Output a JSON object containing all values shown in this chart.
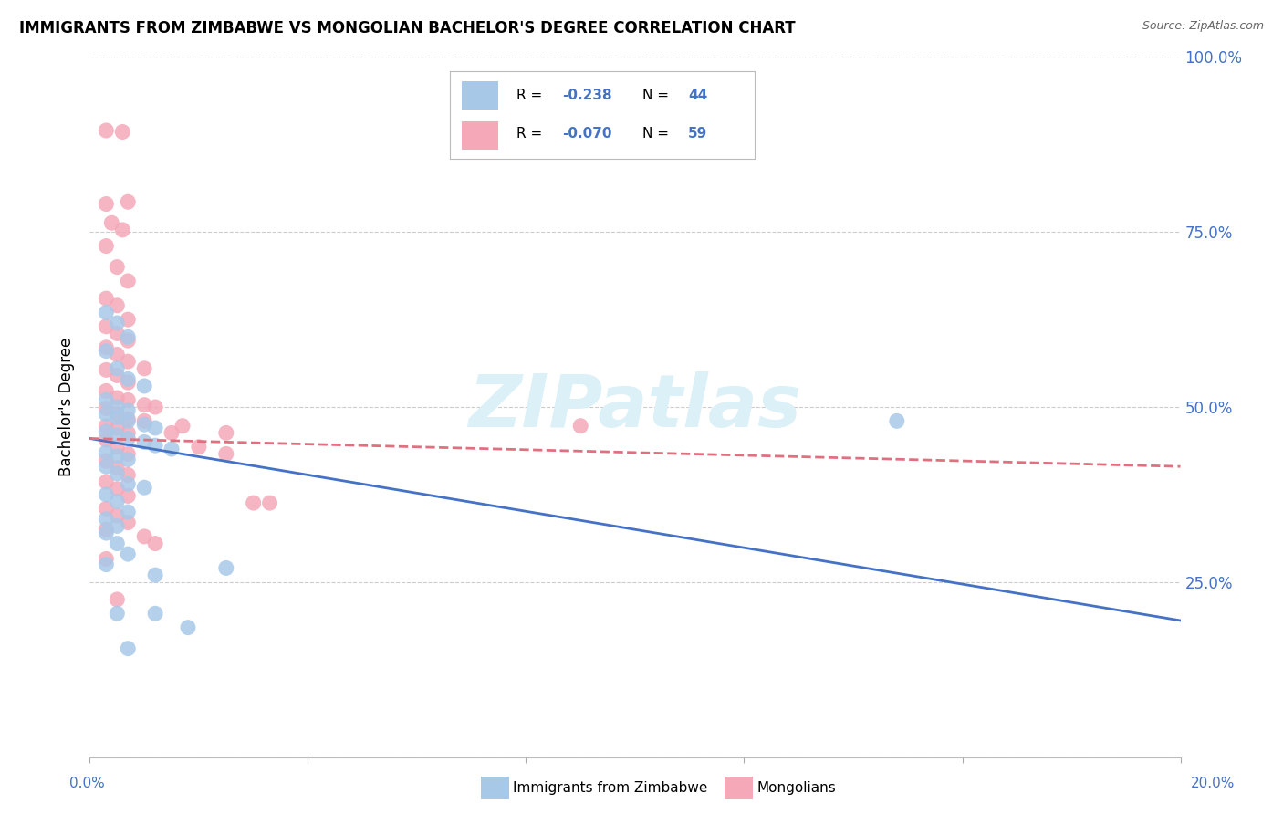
{
  "title": "IMMIGRANTS FROM ZIMBABWE VS MONGOLIAN BACHELOR'S DEGREE CORRELATION CHART",
  "source": "Source: ZipAtlas.com",
  "ylabel": "Bachelor's Degree",
  "ylim": [
    0.0,
    1.0
  ],
  "xlim": [
    0.0,
    0.2
  ],
  "ytick_vals": [
    0.0,
    0.25,
    0.5,
    0.75,
    1.0
  ],
  "ytick_labels_right": [
    "",
    "25.0%",
    "50.0%",
    "75.0%",
    "100.0%"
  ],
  "color_blue": "#A8C8E8",
  "color_pink": "#F4A8B8",
  "color_blue_line": "#4472C4",
  "color_pink_line": "#E07080",
  "blue_line": [
    [
      0.0,
      0.455
    ],
    [
      0.2,
      0.195
    ]
  ],
  "pink_line": [
    [
      0.0,
      0.455
    ],
    [
      0.2,
      0.415
    ]
  ],
  "blue_scatter": [
    [
      0.003,
      0.635
    ],
    [
      0.005,
      0.62
    ],
    [
      0.007,
      0.6
    ],
    [
      0.003,
      0.58
    ],
    [
      0.005,
      0.555
    ],
    [
      0.007,
      0.54
    ],
    [
      0.01,
      0.53
    ],
    [
      0.003,
      0.51
    ],
    [
      0.005,
      0.5
    ],
    [
      0.007,
      0.495
    ],
    [
      0.003,
      0.49
    ],
    [
      0.005,
      0.485
    ],
    [
      0.007,
      0.48
    ],
    [
      0.01,
      0.475
    ],
    [
      0.012,
      0.47
    ],
    [
      0.003,
      0.465
    ],
    [
      0.005,
      0.46
    ],
    [
      0.007,
      0.455
    ],
    [
      0.01,
      0.45
    ],
    [
      0.012,
      0.445
    ],
    [
      0.015,
      0.44
    ],
    [
      0.003,
      0.435
    ],
    [
      0.005,
      0.43
    ],
    [
      0.007,
      0.425
    ],
    [
      0.003,
      0.415
    ],
    [
      0.005,
      0.405
    ],
    [
      0.007,
      0.39
    ],
    [
      0.01,
      0.385
    ],
    [
      0.003,
      0.375
    ],
    [
      0.005,
      0.365
    ],
    [
      0.007,
      0.35
    ],
    [
      0.003,
      0.34
    ],
    [
      0.005,
      0.33
    ],
    [
      0.003,
      0.32
    ],
    [
      0.005,
      0.305
    ],
    [
      0.007,
      0.29
    ],
    [
      0.003,
      0.275
    ],
    [
      0.025,
      0.27
    ],
    [
      0.012,
      0.26
    ],
    [
      0.005,
      0.205
    ],
    [
      0.012,
      0.205
    ],
    [
      0.007,
      0.155
    ],
    [
      0.018,
      0.185
    ],
    [
      0.148,
      0.48
    ]
  ],
  "pink_scatter": [
    [
      0.003,
      0.895
    ],
    [
      0.006,
      0.893
    ],
    [
      0.007,
      0.793
    ],
    [
      0.003,
      0.79
    ],
    [
      0.004,
      0.763
    ],
    [
      0.006,
      0.753
    ],
    [
      0.003,
      0.73
    ],
    [
      0.005,
      0.7
    ],
    [
      0.007,
      0.68
    ],
    [
      0.003,
      0.655
    ],
    [
      0.005,
      0.645
    ],
    [
      0.007,
      0.625
    ],
    [
      0.003,
      0.615
    ],
    [
      0.005,
      0.605
    ],
    [
      0.007,
      0.595
    ],
    [
      0.003,
      0.585
    ],
    [
      0.005,
      0.575
    ],
    [
      0.007,
      0.565
    ],
    [
      0.01,
      0.555
    ],
    [
      0.003,
      0.553
    ],
    [
      0.005,
      0.545
    ],
    [
      0.007,
      0.535
    ],
    [
      0.003,
      0.523
    ],
    [
      0.005,
      0.513
    ],
    [
      0.007,
      0.51
    ],
    [
      0.01,
      0.503
    ],
    [
      0.012,
      0.5
    ],
    [
      0.003,
      0.498
    ],
    [
      0.005,
      0.49
    ],
    [
      0.007,
      0.483
    ],
    [
      0.01,
      0.48
    ],
    [
      0.003,
      0.473
    ],
    [
      0.005,
      0.47
    ],
    [
      0.007,
      0.463
    ],
    [
      0.003,
      0.453
    ],
    [
      0.005,
      0.443
    ],
    [
      0.007,
      0.433
    ],
    [
      0.003,
      0.423
    ],
    [
      0.005,
      0.413
    ],
    [
      0.007,
      0.403
    ],
    [
      0.003,
      0.393
    ],
    [
      0.005,
      0.383
    ],
    [
      0.007,
      0.373
    ],
    [
      0.003,
      0.355
    ],
    [
      0.005,
      0.345
    ],
    [
      0.007,
      0.335
    ],
    [
      0.003,
      0.325
    ],
    [
      0.01,
      0.315
    ],
    [
      0.012,
      0.305
    ],
    [
      0.003,
      0.283
    ],
    [
      0.005,
      0.225
    ],
    [
      0.015,
      0.463
    ],
    [
      0.017,
      0.473
    ],
    [
      0.02,
      0.443
    ],
    [
      0.025,
      0.463
    ],
    [
      0.025,
      0.433
    ],
    [
      0.03,
      0.363
    ],
    [
      0.033,
      0.363
    ],
    [
      0.09,
      0.473
    ]
  ]
}
